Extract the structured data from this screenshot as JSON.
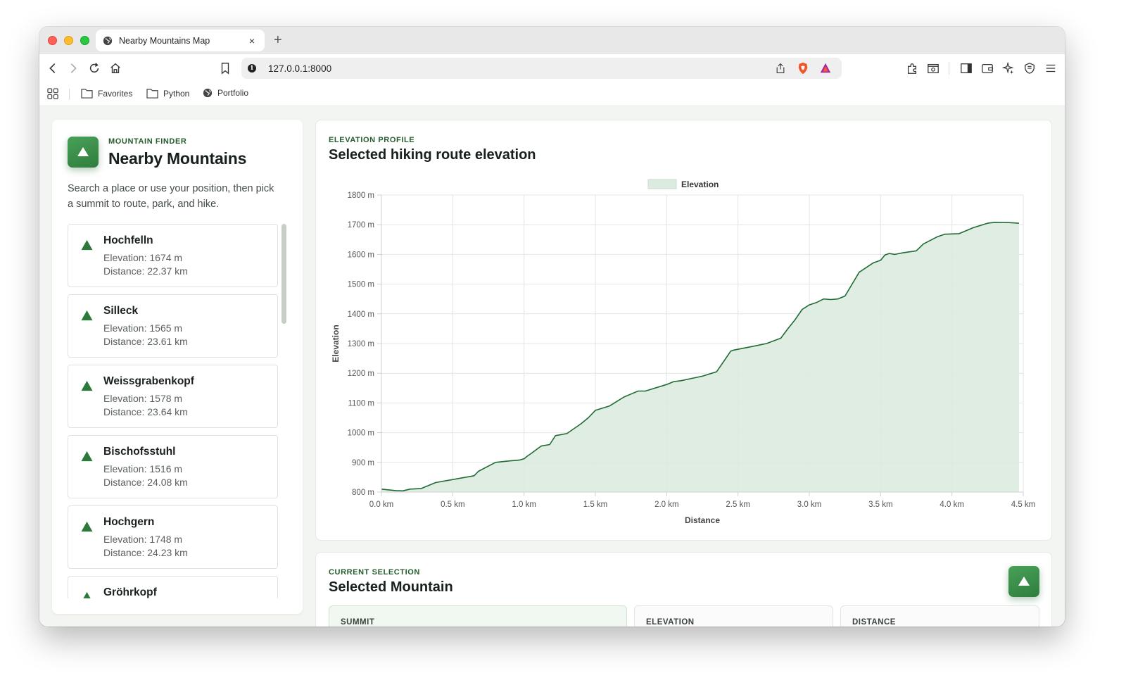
{
  "browser": {
    "tab_title": "Nearby Mountains Map",
    "new_tab_label": "+",
    "close_label": "×",
    "url": "127.0.0.1:8000",
    "bookmarks": [
      "Favorites",
      "Python",
      "Portfolio"
    ]
  },
  "sidebar": {
    "eyebrow": "MOUNTAIN FINDER",
    "title": "Nearby Mountains",
    "description": "Search a place or use your position, then pick a summit to route, park, and hike.",
    "mountains": [
      {
        "name": "Hochfelln",
        "elevation": "Elevation: 1674 m",
        "distance": "Distance: 22.37 km"
      },
      {
        "name": "Silleck",
        "elevation": "Elevation: 1565 m",
        "distance": "Distance: 23.61 km"
      },
      {
        "name": "Weissgrabenkopf",
        "elevation": "Elevation: 1578 m",
        "distance": "Distance: 23.64 km"
      },
      {
        "name": "Bischofsstuhl",
        "elevation": "Elevation: 1516 m",
        "distance": "Distance: 24.08 km"
      },
      {
        "name": "Hochgern",
        "elevation": "Elevation: 1748 m",
        "distance": "Distance: 24.23 km"
      },
      {
        "name": "Gröhrkopf",
        "elevation": "",
        "distance": ""
      }
    ]
  },
  "elevation_profile": {
    "eyebrow": "ELEVATION PROFILE",
    "title": "Selected hiking route elevation"
  },
  "selection": {
    "eyebrow": "CURRENT SELECTION",
    "title": "Selected Mountain",
    "stats": [
      "SUMMIT",
      "ELEVATION",
      "DISTANCE"
    ]
  },
  "colors": {
    "accent": "#2f7d3d",
    "line": "#1f6b33",
    "fill": "#dcebdf"
  },
  "chart_data": {
    "type": "area",
    "series": [
      {
        "name": "Elevation",
        "x": [
          0,
          0.1,
          0.15,
          0.2,
          0.28,
          0.38,
          0.65,
          0.68,
          0.8,
          0.9,
          0.97,
          1.0,
          1.02,
          1.05,
          1.12,
          1.18,
          1.22,
          1.3,
          1.4,
          1.45,
          1.5,
          1.6,
          1.65,
          1.7,
          1.75,
          1.8,
          1.85,
          2.0,
          2.05,
          2.1,
          2.2,
          2.25,
          2.35,
          2.45,
          2.47,
          2.6,
          2.7,
          2.8,
          2.85,
          2.9,
          2.95,
          3.0,
          3.05,
          3.1,
          3.15,
          3.2,
          3.25,
          3.3,
          3.35,
          3.45,
          3.5,
          3.53,
          3.56,
          3.6,
          3.65,
          3.75,
          3.8,
          3.9,
          3.95,
          4.05,
          4.15,
          4.25,
          4.3,
          4.4,
          4.47
        ],
        "y": [
          810,
          805,
          804,
          810,
          812,
          832,
          855,
          870,
          900,
          905,
          908,
          912,
          920,
          930,
          955,
          960,
          990,
          997,
          1030,
          1050,
          1075,
          1090,
          1105,
          1120,
          1130,
          1140,
          1140,
          1162,
          1172,
          1175,
          1185,
          1190,
          1205,
          1275,
          1278,
          1290,
          1300,
          1318,
          1350,
          1380,
          1415,
          1430,
          1438,
          1450,
          1448,
          1450,
          1460,
          1500,
          1540,
          1572,
          1580,
          1598,
          1603,
          1600,
          1605,
          1612,
          1635,
          1660,
          1668,
          1670,
          1690,
          1705,
          1708,
          1707,
          1705
        ]
      }
    ],
    "xlabel": "Distance",
    "ylabel": "Elevation",
    "xlim": [
      0,
      4.5
    ],
    "ylim": [
      800,
      1800
    ],
    "xticks": [
      "0.0 km",
      "0.5 km",
      "1.0 km",
      "1.5 km",
      "2.0 km",
      "2.5 km",
      "3.0 km",
      "3.5 km",
      "4.0 km",
      "4.5 km"
    ],
    "yticks": [
      "800 m",
      "900 m",
      "1000 m",
      "1100 m",
      "1200 m",
      "1300 m",
      "1400 m",
      "1500 m",
      "1600 m",
      "1700 m",
      "1800 m"
    ],
    "grid": true,
    "legend": "top"
  }
}
